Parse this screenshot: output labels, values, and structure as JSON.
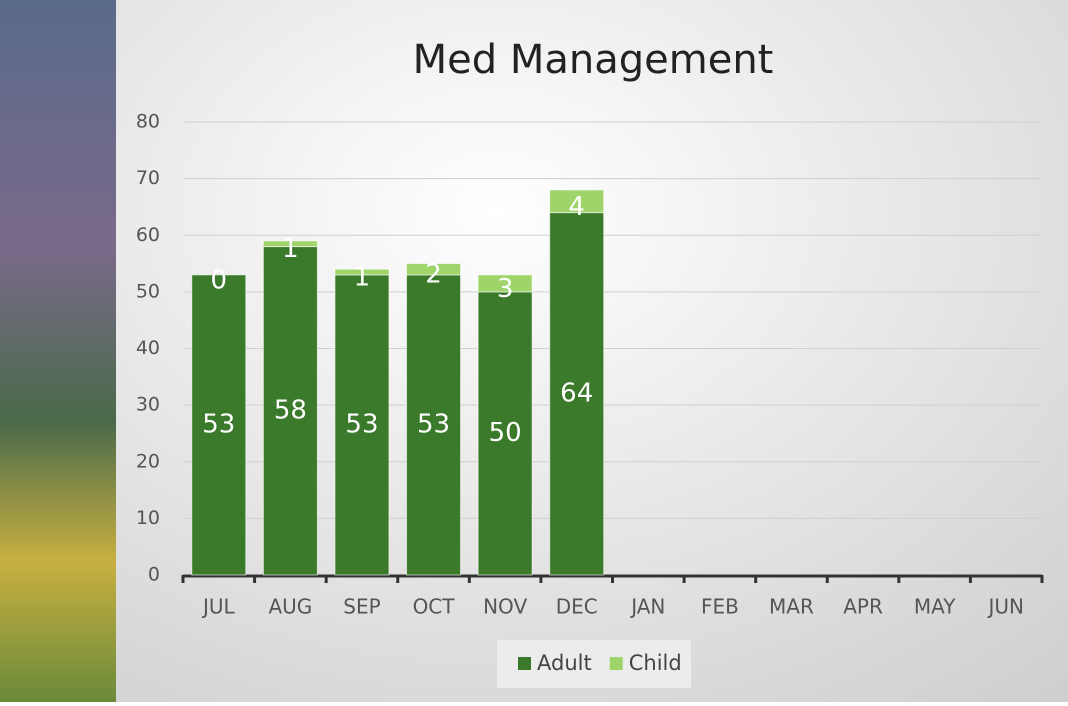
{
  "chart_data": {
    "type": "stacked_bar",
    "title": "Med Management",
    "categories": [
      "JUL",
      "AUG",
      "SEP",
      "OCT",
      "NOV",
      "DEC",
      "JAN",
      "FEB",
      "MAR",
      "APR",
      "MAY",
      "JUN"
    ],
    "series": [
      {
        "name": "Adult",
        "color": "#3b7a2b",
        "values": [
          53,
          58,
          53,
          53,
          50,
          64,
          null,
          null,
          null,
          null,
          null,
          null
        ]
      },
      {
        "name": "Child",
        "color": "#9fd46a",
        "values": [
          0,
          1,
          1,
          2,
          3,
          4,
          null,
          null,
          null,
          null,
          null,
          null
        ]
      }
    ],
    "ylim": [
      0,
      80
    ],
    "yticks": [
      0,
      10,
      20,
      30,
      40,
      50,
      60,
      70,
      80
    ],
    "grid": true,
    "legend": "bottom"
  }
}
